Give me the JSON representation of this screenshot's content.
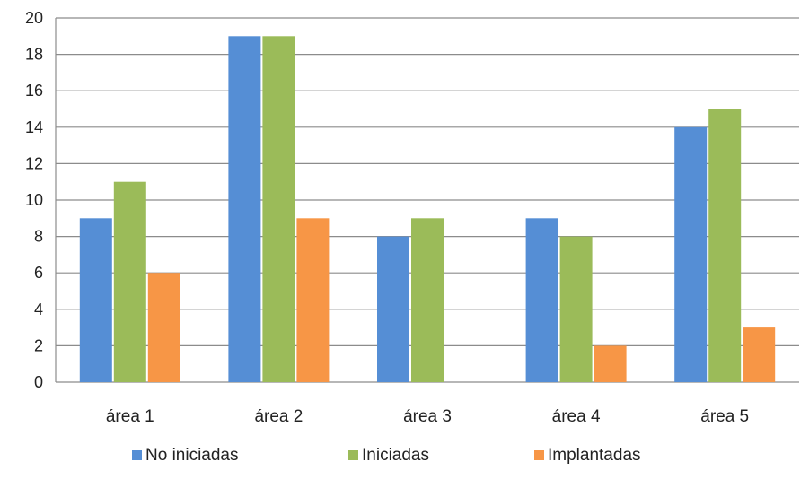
{
  "chart_data": {
    "type": "bar",
    "title": "",
    "xlabel": "",
    "ylabel": "",
    "categories": [
      "área 1",
      "área 2",
      "área 3",
      "área 4",
      "área 5"
    ],
    "series": [
      {
        "name": "No iniciadas",
        "values": [
          9,
          19,
          8,
          9,
          14
        ],
        "color": "#558ed5"
      },
      {
        "name": "Iniciadas",
        "values": [
          11,
          19,
          9,
          8,
          15
        ],
        "color": "#9bbb59"
      },
      {
        "name": "Implantadas",
        "values": [
          6,
          9,
          0,
          2,
          3
        ],
        "color": "#f79646"
      }
    ],
    "ylim": [
      0,
      20
    ],
    "yticks": [
      0,
      2,
      4,
      6,
      8,
      10,
      12,
      14,
      16,
      18,
      20
    ],
    "grid": true,
    "legend_position": "bottom",
    "colors": {
      "grid": "#8c8c8c",
      "axis": "#8c8c8c"
    }
  }
}
